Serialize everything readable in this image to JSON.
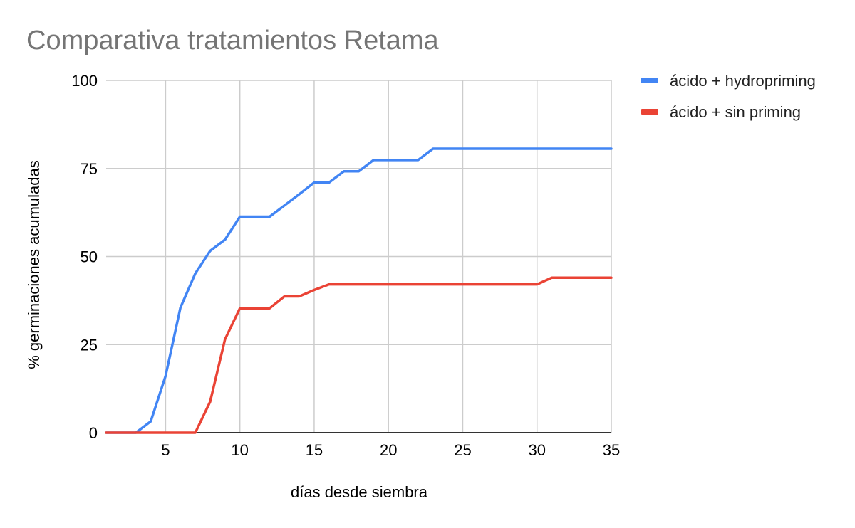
{
  "chart_data": {
    "type": "line",
    "title": "Comparativa tratamientos Retama",
    "xlabel": "días desde siembra",
    "ylabel": "% germinaciones acumuladas",
    "xlim": [
      1,
      35
    ],
    "ylim": [
      0,
      100
    ],
    "x_ticks": [
      5,
      10,
      15,
      20,
      25,
      30,
      35
    ],
    "y_ticks": [
      0,
      25,
      50,
      75,
      100
    ],
    "grid": true,
    "legend_position": "right",
    "x": [
      1,
      2,
      3,
      4,
      5,
      6,
      7,
      8,
      9,
      10,
      11,
      12,
      13,
      14,
      15,
      16,
      17,
      18,
      19,
      20,
      21,
      22,
      23,
      24,
      25,
      26,
      27,
      28,
      29,
      30,
      31,
      32,
      33,
      34,
      35
    ],
    "series": [
      {
        "name": "ácido + hydropriming",
        "color": "#4285f4",
        "values": [
          0,
          0,
          0,
          3.2,
          16.1,
          35.5,
          45.2,
          51.6,
          54.8,
          61.3,
          61.3,
          61.3,
          64.5,
          67.7,
          71.0,
          71.0,
          74.2,
          74.2,
          77.4,
          77.4,
          77.4,
          77.4,
          80.6,
          80.6,
          80.6,
          80.6,
          80.6,
          80.6,
          80.6,
          80.6,
          80.6,
          80.6,
          80.6,
          80.6,
          80.6
        ]
      },
      {
        "name": "ácido + sin priming",
        "color": "#ea4335",
        "values": [
          0,
          0,
          0,
          0,
          0,
          0,
          0,
          8.8,
          26.5,
          35.3,
          35.3,
          35.3,
          38.7,
          38.7,
          40.5,
          42.1,
          42.1,
          42.1,
          42.1,
          42.1,
          42.1,
          42.1,
          42.1,
          42.1,
          42.1,
          42.1,
          42.1,
          42.1,
          42.1,
          42.1,
          44.0,
          44.0,
          44.0,
          44.0,
          44.0
        ]
      }
    ]
  }
}
